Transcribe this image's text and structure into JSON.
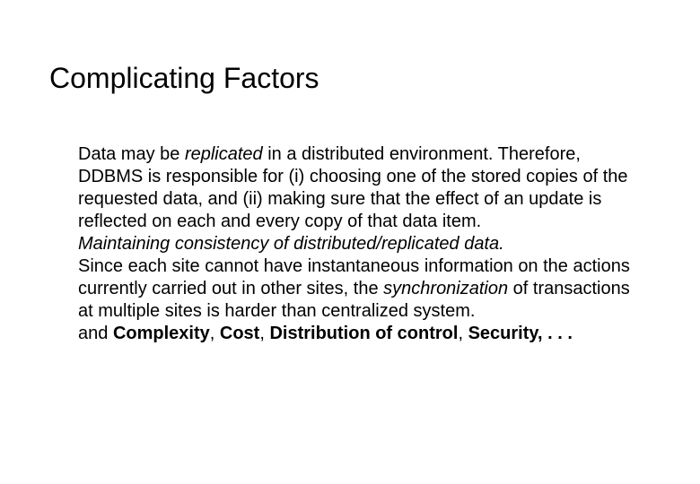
{
  "slide": {
    "title": "Complicating Factors",
    "p1_a": "Data may be ",
    "p1_b": "replicated",
    "p1_c": " in a distributed environment. Therefore, DDBMS is responsible for (i) choosing one of the stored copies of the requested data, and (ii) making sure that the effect of an update is reflected on each and every copy of that data item.",
    "p2": "Maintaining consistency of distributed/replicated data.",
    "p3_a": "Since each site cannot have instantaneous information on the actions currently carried out in other sites, the ",
    "p3_b": "synchronization",
    "p3_c": " of transactions at multiple sites is harder than centralized system.",
    "p4_a": "and ",
    "p4_b": "Complexity",
    "p4_c": ",  ",
    "p4_d": "Cost",
    "p4_e": ",  ",
    "p4_f": "Distribution of control",
    "p4_g": ", ",
    "p4_h": "Security, . . ."
  },
  "style": {
    "background_color": "#ffffff",
    "text_color": "#000000",
    "title_fontsize": 32,
    "body_fontsize": 20,
    "font_family": "Arial"
  }
}
